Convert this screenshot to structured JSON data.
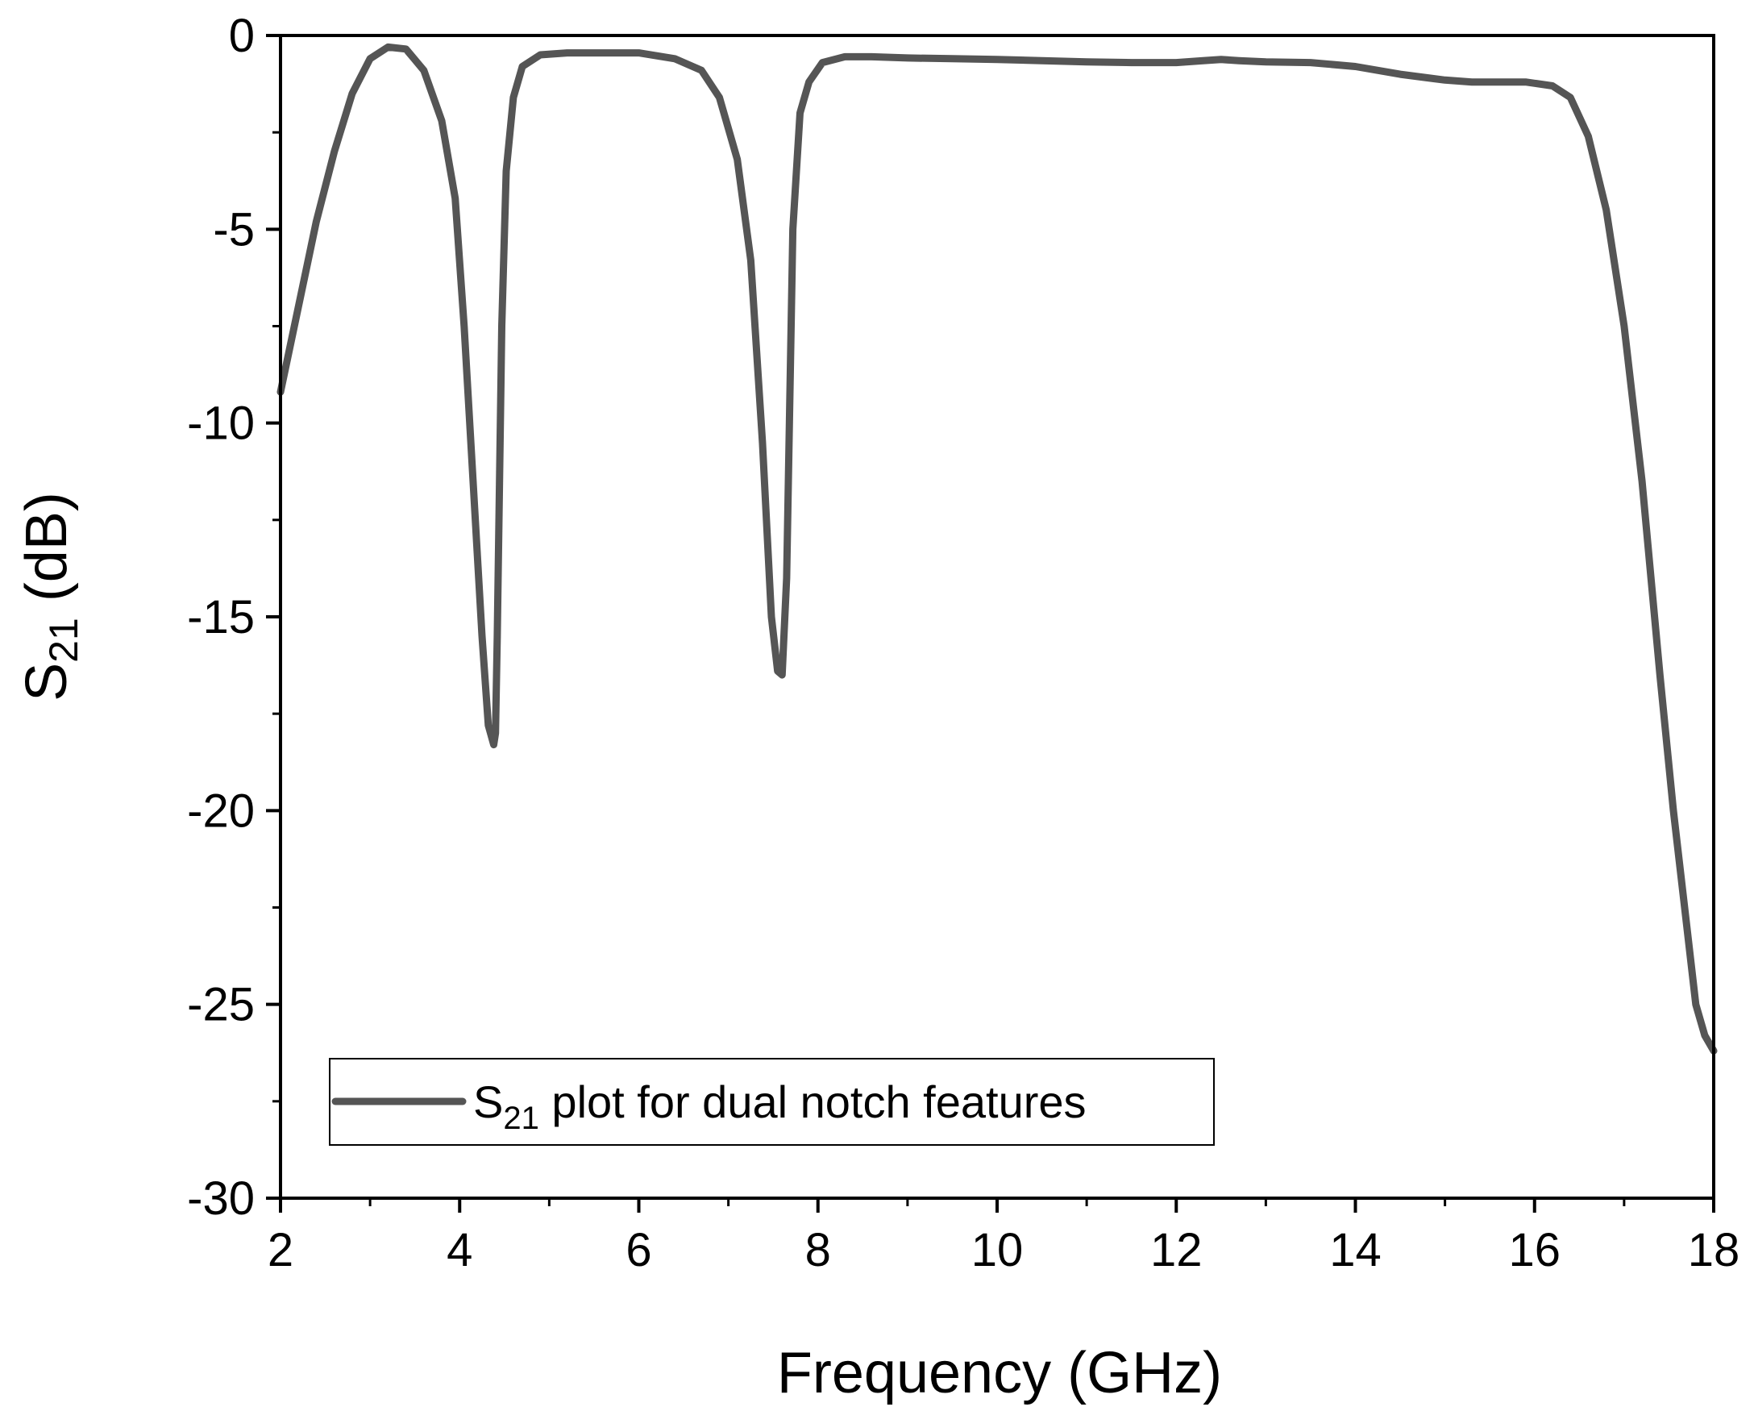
{
  "chart_data": {
    "type": "line",
    "title": "",
    "xlabel": "Frequency (GHz)",
    "ylabel": {
      "base": "S",
      "sub": "21",
      "suffix": " (dB)"
    },
    "xlim": [
      2,
      18
    ],
    "ylim": [
      -30,
      0
    ],
    "x_ticks": [
      2,
      4,
      6,
      8,
      10,
      12,
      14,
      16,
      18
    ],
    "y_ticks": [
      0,
      -5,
      -10,
      -15,
      -20,
      -25,
      -30
    ],
    "x_tick_labels": [
      "2",
      "4",
      "6",
      "8",
      "10",
      "12",
      "14",
      "16",
      "18"
    ],
    "y_tick_labels": [
      "0",
      "-5",
      "-10",
      "-15",
      "-20",
      "-25",
      "-30"
    ],
    "grid": false,
    "legend_position": "bottom-left",
    "colors": {
      "line": "#555555",
      "axes": "#000000",
      "background": "#ffffff"
    },
    "series": [
      {
        "name": "S21 plot for dual notch features",
        "legend_label": {
          "base": "S",
          "sub": "21",
          "suffix": " plot for dual notch features"
        },
        "x": [
          2.0,
          2.2,
          2.4,
          2.6,
          2.8,
          3.0,
          3.2,
          3.4,
          3.6,
          3.8,
          3.95,
          4.05,
          4.15,
          4.25,
          4.32,
          4.38,
          4.4,
          4.42,
          4.47,
          4.52,
          4.6,
          4.7,
          4.9,
          5.2,
          5.6,
          6.0,
          6.4,
          6.7,
          6.9,
          7.1,
          7.25,
          7.38,
          7.48,
          7.55,
          7.6,
          7.65,
          7.72,
          7.8,
          7.9,
          8.05,
          8.3,
          8.6,
          9.0,
          9.5,
          10.0,
          10.5,
          11.0,
          11.5,
          12.0,
          12.3,
          12.5,
          12.7,
          13.0,
          13.5,
          14.0,
          14.5,
          15.0,
          15.3,
          15.6,
          15.9,
          16.2,
          16.4,
          16.6,
          16.8,
          17.0,
          17.2,
          17.4,
          17.55,
          17.7,
          17.8,
          17.9,
          17.95,
          18.0
        ],
        "values": [
          -9.2,
          -7.0,
          -4.8,
          -3.0,
          -1.5,
          -0.6,
          -0.3,
          -0.35,
          -0.9,
          -2.2,
          -4.2,
          -7.5,
          -11.5,
          -15.5,
          -17.8,
          -18.3,
          -18.0,
          -15.5,
          -7.5,
          -3.5,
          -1.6,
          -0.8,
          -0.5,
          -0.45,
          -0.45,
          -0.45,
          -0.6,
          -0.9,
          -1.6,
          -3.2,
          -5.8,
          -10.5,
          -15.0,
          -16.4,
          -16.5,
          -14.0,
          -5.0,
          -2.0,
          -1.2,
          -0.7,
          -0.55,
          -0.55,
          -0.58,
          -0.6,
          -0.62,
          -0.65,
          -0.68,
          -0.7,
          -0.7,
          -0.65,
          -0.62,
          -0.65,
          -0.68,
          -0.7,
          -0.8,
          -1.0,
          -1.15,
          -1.2,
          -1.2,
          -1.2,
          -1.3,
          -1.6,
          -2.6,
          -4.5,
          -7.5,
          -11.5,
          -16.5,
          -20.0,
          -23.0,
          -25.0,
          -25.8,
          -26.0,
          -26.2
        ]
      }
    ]
  }
}
